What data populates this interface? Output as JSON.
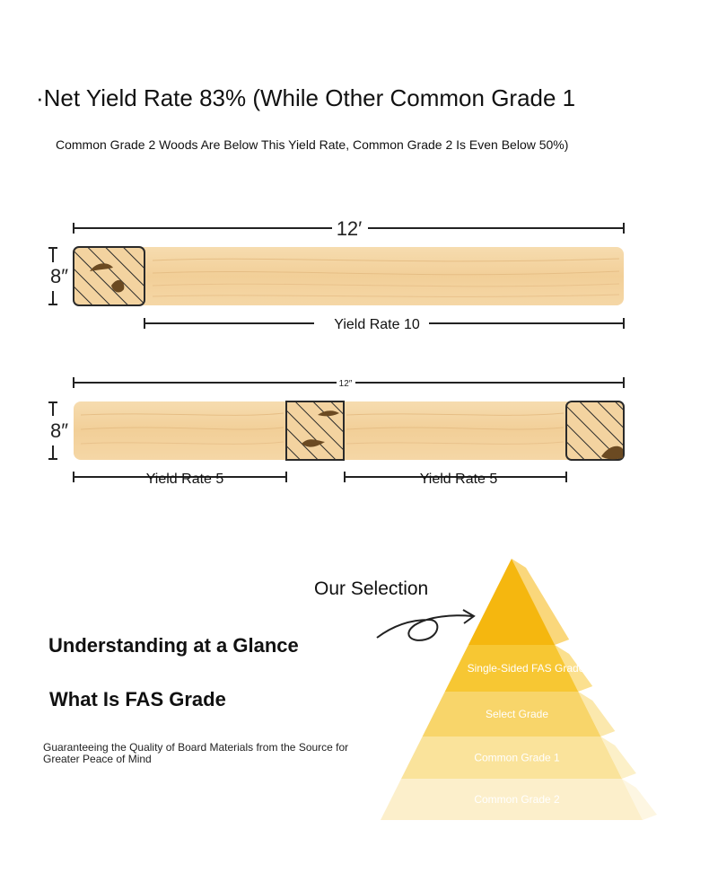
{
  "header": {
    "headline": "·Net Yield Rate 83% (While Other Common Grade 1",
    "subline": "Common Grade 2 Woods Are Below This Yield Rate, Common Grade 2 Is Even Below 50%)"
  },
  "diagram": {
    "board_top": {
      "length_label": "12′",
      "width_label": "8″",
      "yield_label": "Yield Rate 10"
    },
    "board_bottom": {
      "length_label": "12″",
      "width_label": "8″",
      "yield_left_label": "Yield Rate 5",
      "yield_right_label": "Yield Rate 5"
    }
  },
  "glance": {
    "title": "Understanding at a Glance",
    "subtitle": "What Is FAS Grade",
    "description": "Guaranteeing the Quality of Board Materials from the Source for Greater Peace of Mind"
  },
  "pyramid": {
    "selection_label": "Our Selection",
    "levels": [
      {
        "label": "",
        "color": "#f5b70f"
      },
      {
        "label": "Single-Sided FAS Grade",
        "color": "#f7c733"
      },
      {
        "label": "Select Grade",
        "color": "#f8d56a"
      },
      {
        "label": "Common Grade 1",
        "color": "#fae39b"
      },
      {
        "label": "Common Grade 2",
        "color": "#fcefcb"
      }
    ]
  },
  "colors": {
    "wood": "#f3d3a0",
    "defect": "#6b4a22",
    "dimension_line": "#222222"
  }
}
